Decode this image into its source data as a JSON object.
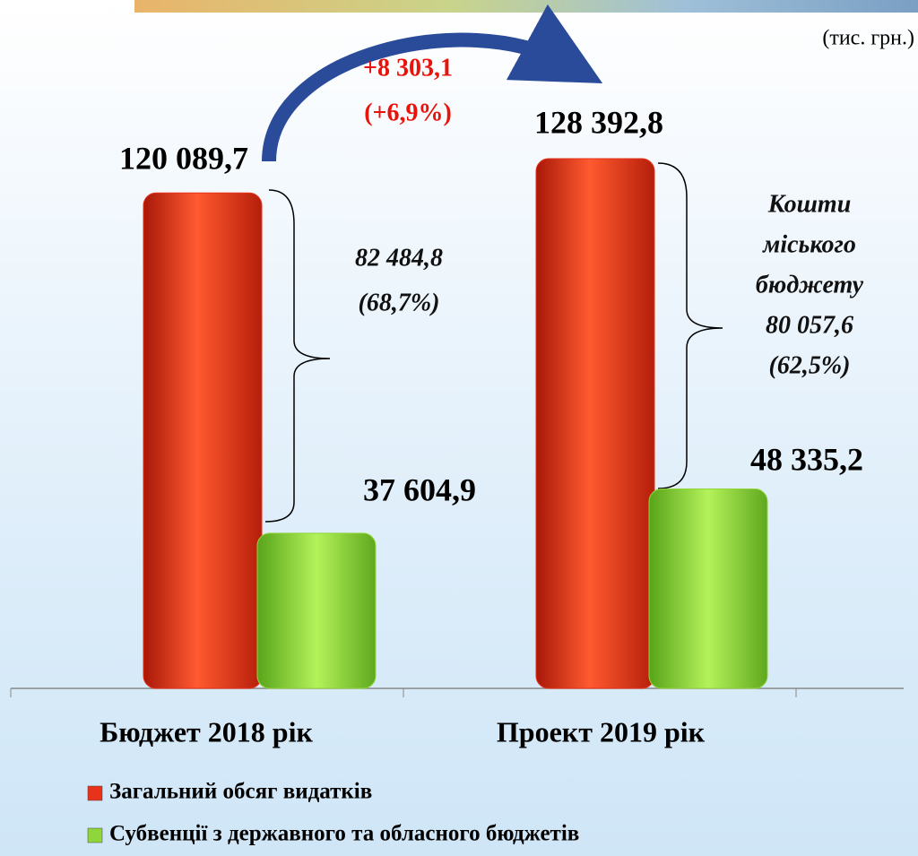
{
  "chart_data": {
    "type": "bar",
    "unit": "(тис. грн.)",
    "categories": [
      "Бюджет 2018 рік",
      "Проект 2019 рік"
    ],
    "series": [
      {
        "name": "Загальний обсяг видатків",
        "color": "#e8321a",
        "values": [
          120089.7,
          128392.8
        ],
        "value_labels": [
          "120 089,7",
          "128 392,8"
        ]
      },
      {
        "name": "Субвенції з державного та обласного бюджетів",
        "color": "#8fd63a",
        "values": [
          37604.9,
          48335.2
        ],
        "value_labels": [
          "37 604,9",
          "48 335,2"
        ]
      }
    ],
    "annotations": [
      [
        "+8 303,1",
        "(+6,9%)"
      ],
      [
        "82 484,8",
        "(68,7%)"
      ],
      [
        "Кошти",
        "міського",
        "бюджету",
        "80 057,6",
        "(62,5%)"
      ]
    ]
  }
}
